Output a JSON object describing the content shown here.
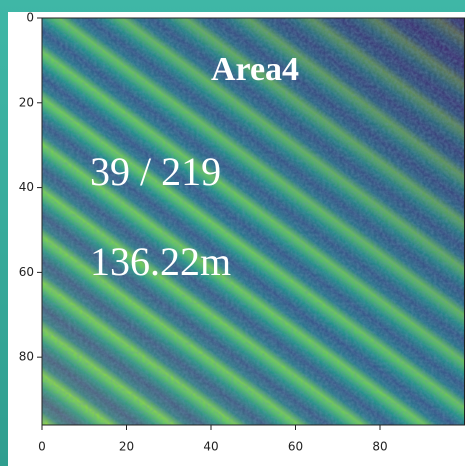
{
  "chart_data": {
    "type": "image",
    "title": "Area4",
    "annotations": [
      "39 / 219",
      "136.22m"
    ],
    "xlim": [
      0,
      100
    ],
    "ylim": [
      0,
      96
    ],
    "xticks": [
      0,
      20,
      40,
      60,
      80
    ],
    "yticks": [
      0,
      20,
      40,
      60,
      80
    ],
    "colormap": "viridis"
  }
}
